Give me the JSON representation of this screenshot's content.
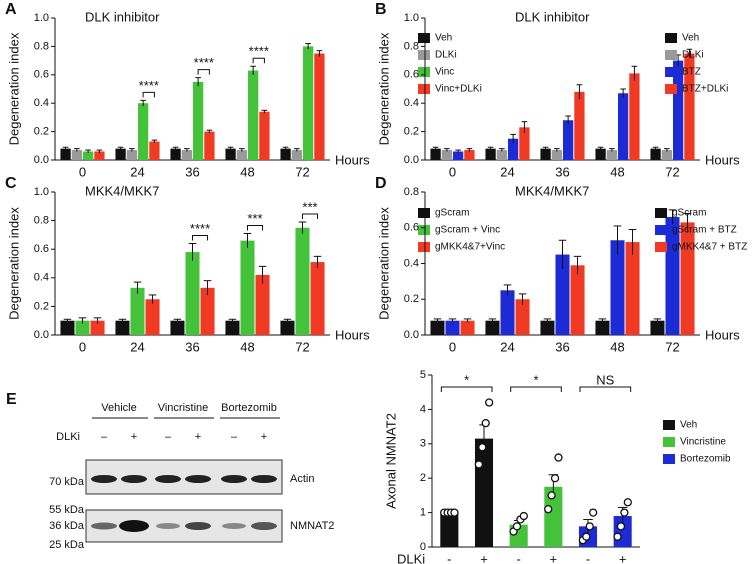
{
  "chart_data": [
    {
      "panel": "A",
      "type": "bar",
      "title": "DLK inhibitor",
      "ylabel": "Degeneration index",
      "xlabel": "Hours",
      "categories": [
        "0",
        "24",
        "36",
        "48",
        "72"
      ],
      "ylim": [
        0,
        1
      ],
      "yticks": [
        {
          "value": 0,
          "label": "0.0"
        },
        0.2,
        0.4,
        0.6,
        0.8,
        {
          "value": 1,
          "label": "1.0"
        }
      ],
      "series": [
        {
          "name": "Veh",
          "color": "#111111",
          "values": [
            0.08,
            0.08,
            0.08,
            0.08,
            0.08
          ],
          "errors": [
            0.01,
            0.01,
            0.01,
            0.01,
            0.01
          ]
        },
        {
          "name": "DLKi",
          "color": "#9a9a9a",
          "values": [
            0.07,
            0.07,
            0.07,
            0.07,
            0.07
          ],
          "errors": [
            0.01,
            0.01,
            0.01,
            0.01,
            0.01
          ]
        },
        {
          "name": "Vinc",
          "color": "#44c23a",
          "values": [
            0.06,
            0.4,
            0.55,
            0.63,
            0.8
          ],
          "errors": [
            0.01,
            0.02,
            0.03,
            0.03,
            0.02
          ]
        },
        {
          "name": "Vinc+DLKi",
          "color": "#f03a24",
          "values": [
            0.06,
            0.13,
            0.2,
            0.34,
            0.75
          ],
          "errors": [
            0.01,
            0.01,
            0.01,
            0.01,
            0.02
          ]
        }
      ],
      "annotations": [
        null,
        "****",
        "****",
        "****",
        null
      ]
    },
    {
      "panel": "B",
      "type": "bar",
      "title": "DLK inhibitor",
      "ylabel": "Degeneration index",
      "xlabel": "Hours",
      "categories": [
        "0",
        "24",
        "36",
        "48",
        "72"
      ],
      "ylim": [
        0,
        1
      ],
      "yticks": [
        {
          "value": 0,
          "label": "0.0"
        },
        0.2,
        0.4,
        0.6,
        0.8,
        {
          "value": 1,
          "label": "1.0"
        }
      ],
      "series": [
        {
          "name": "Veh",
          "color": "#111111",
          "values": [
            0.08,
            0.08,
            0.08,
            0.08,
            0.08
          ],
          "errors": [
            0.01,
            0.01,
            0.01,
            0.01,
            0.01
          ]
        },
        {
          "name": "DLKi",
          "color": "#9a9a9a",
          "values": [
            0.07,
            0.07,
            0.07,
            0.07,
            0.07
          ],
          "errors": [
            0.01,
            0.01,
            0.01,
            0.01,
            0.01
          ]
        },
        {
          "name": "BTZ",
          "color": "#1d2bd6",
          "values": [
            0.06,
            0.15,
            0.28,
            0.47,
            0.7
          ],
          "errors": [
            0.01,
            0.03,
            0.03,
            0.03,
            0.04
          ]
        },
        {
          "name": "BTZ+DLKi",
          "color": "#f03a24",
          "values": [
            0.07,
            0.23,
            0.48,
            0.61,
            0.75
          ],
          "errors": [
            0.01,
            0.04,
            0.05,
            0.05,
            0.03
          ]
        }
      ]
    },
    {
      "panel": "C",
      "type": "bar",
      "title": "MKK4/MKK7",
      "ylabel": "Degeneration index",
      "xlabel": "Hours",
      "categories": [
        "0",
        "24",
        "36",
        "48",
        "72"
      ],
      "ylim": [
        0,
        1
      ],
      "yticks": [
        {
          "value": 0,
          "label": "0.0"
        },
        0.2,
        0.4,
        0.6,
        0.8,
        {
          "value": 1,
          "label": "1.0"
        }
      ],
      "series": [
        {
          "name": "gScram",
          "color": "#111111",
          "values": [
            0.1,
            0.1,
            0.1,
            0.1,
            0.1
          ],
          "errors": [
            0.01,
            0.01,
            0.01,
            0.01,
            0.01
          ]
        },
        {
          "name": "gScram + Vinc",
          "color": "#44c23a",
          "values": [
            0.1,
            0.33,
            0.58,
            0.66,
            0.75
          ],
          "errors": [
            0.02,
            0.04,
            0.06,
            0.05,
            0.04
          ]
        },
        {
          "name": "gMKK4&7+Vinc",
          "color": "#f03a24",
          "values": [
            0.1,
            0.25,
            0.33,
            0.42,
            0.51
          ],
          "errors": [
            0.02,
            0.03,
            0.05,
            0.06,
            0.04
          ]
        }
      ],
      "annotations": [
        null,
        null,
        "****",
        "***",
        "***"
      ]
    },
    {
      "panel": "D",
      "type": "bar",
      "title": "MKK4/MKK7",
      "ylabel": "Degeneration index",
      "xlabel": "Hours",
      "categories": [
        "0",
        "24",
        "36",
        "48",
        "72"
      ],
      "ylim": [
        0,
        0.8
      ],
      "yticks": [
        {
          "value": 0,
          "label": "0.0"
        },
        0.2,
        0.4,
        0.6,
        0.8
      ],
      "series": [
        {
          "name": "gScram",
          "color": "#111111",
          "values": [
            0.08,
            0.08,
            0.08,
            0.08,
            0.08
          ],
          "errors": [
            0.01,
            0.01,
            0.01,
            0.01,
            0.01
          ]
        },
        {
          "name": "gScram + BTZ",
          "color": "#1d2bd6",
          "values": [
            0.08,
            0.25,
            0.45,
            0.53,
            0.66
          ],
          "errors": [
            0.01,
            0.03,
            0.08,
            0.08,
            0.04
          ]
        },
        {
          "name": "gMKK4&7 + BTZ",
          "color": "#f03a24",
          "values": [
            0.08,
            0.2,
            0.39,
            0.52,
            0.63
          ],
          "errors": [
            0.01,
            0.03,
            0.05,
            0.07,
            0.05
          ]
        }
      ]
    },
    {
      "type": "bar",
      "ylabel": "Axonal NMNAT2",
      "xlabel": "DLKi",
      "categories": [
        "-",
        "+",
        "-",
        "+",
        "-",
        "+"
      ],
      "ylim": [
        0,
        5
      ],
      "yticks": [
        0,
        1,
        2,
        3,
        4,
        5
      ],
      "series": [
        {
          "name": "Veh",
          "color": "#111111",
          "values": [
            1,
            3.15,
            null,
            null,
            null,
            null
          ],
          "errors": [
            0.02,
            0.4,
            null,
            null,
            null,
            null
          ],
          "points": [
            [
              1,
              1,
              1,
              1
            ],
            [
              2.4,
              2.9,
              3.6,
              4.2
            ],
            null,
            null,
            null,
            null
          ]
        },
        {
          "name": "Vincristine",
          "color": "#44c23a",
          "values": [
            null,
            null,
            0.65,
            1.75,
            null,
            null
          ],
          "errors": [
            null,
            null,
            0.12,
            0.35,
            null,
            null
          ],
          "points": [
            null,
            null,
            [
              0.45,
              0.6,
              0.8,
              0.9
            ],
            [
              1.1,
              1.5,
              2.0,
              2.6
            ],
            null,
            null
          ]
        },
        {
          "name": "Bortezomib",
          "color": "#1d2bd6",
          "values": [
            null,
            null,
            null,
            null,
            0.6,
            0.9
          ],
          "errors": [
            null,
            null,
            null,
            null,
            0.2,
            0.25
          ],
          "points": [
            null,
            null,
            null,
            null,
            [
              0.2,
              0.3,
              0.6,
              1.0
            ],
            [
              0.3,
              0.6,
              1.0,
              1.3
            ]
          ]
        }
      ],
      "annotations": [
        "*",
        "*",
        "NS"
      ]
    }
  ],
  "blot": {
    "panel": "E",
    "groups": [
      "Vehicle",
      "Vincristine",
      "Bortezomib"
    ],
    "treatment": "DLKi",
    "lanes": [
      "–",
      "+",
      "–",
      "+",
      "–",
      "+"
    ],
    "markers": [
      "70 kDa",
      "55 kDa",
      "36 kDa",
      "25 kDa"
    ],
    "bands": [
      "Actin",
      "NMNAT2"
    ]
  }
}
